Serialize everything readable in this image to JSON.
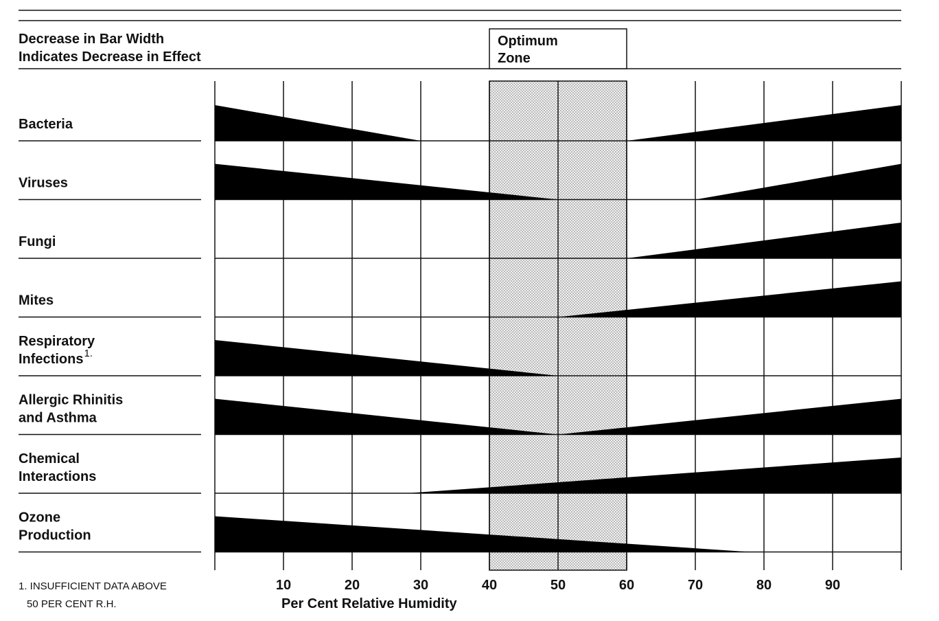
{
  "chart_data": {
    "type": "wedge",
    "header": [
      "Decrease in Bar Width",
      "Indicates Decrease in Effect"
    ],
    "zone_label": [
      "Optimum",
      "Zone"
    ],
    "zone": [
      40,
      60
    ],
    "xlim": [
      0,
      100
    ],
    "xticks": [
      10,
      20,
      30,
      40,
      50,
      60,
      70,
      80,
      90
    ],
    "x_label": "Per Cent Relative Humidity",
    "categories": [
      [
        "Bacteria"
      ],
      [
        "Viruses"
      ],
      [
        "Fungi"
      ],
      [
        "Mites"
      ],
      [
        "Respiratory",
        "Infections"
      ],
      [
        "Allergic Rhinitis",
        "and Asthma"
      ],
      [
        "Chemical",
        "Interactions"
      ],
      [
        "Ozone",
        "Production"
      ]
    ],
    "ranges": [
      [
        [
          0,
          30
        ],
        [
          60,
          100
        ]
      ],
      [
        [
          0,
          50
        ],
        [
          70,
          100
        ]
      ],
      [
        [
          60,
          100
        ]
      ],
      [
        [
          50,
          100
        ]
      ],
      [
        [
          0,
          50
        ]
      ],
      [
        [
          0,
          50
        ],
        [
          50,
          100
        ]
      ],
      [
        [
          28,
          100
        ]
      ],
      [
        [
          0,
          78
        ]
      ]
    ],
    "color": "#000000",
    "footnote": {
      "marker": "1.",
      "text": [
        "1. INSUFFICIENT DATA ABOVE",
        "50 PER CENT R.H."
      ]
    }
  }
}
